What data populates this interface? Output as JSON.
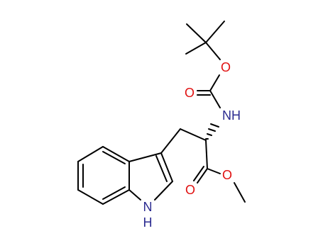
{
  "labels": {
    "ether_oxygen": "O",
    "carbonyl_oxygen_boc": "O",
    "amide_nitrogen": "NH",
    "carbonyl_oxygen_ester": "O",
    "ester_oxygen": "O",
    "indole_nitrogen": "N",
    "indole_hydrogen": "H"
  }
}
